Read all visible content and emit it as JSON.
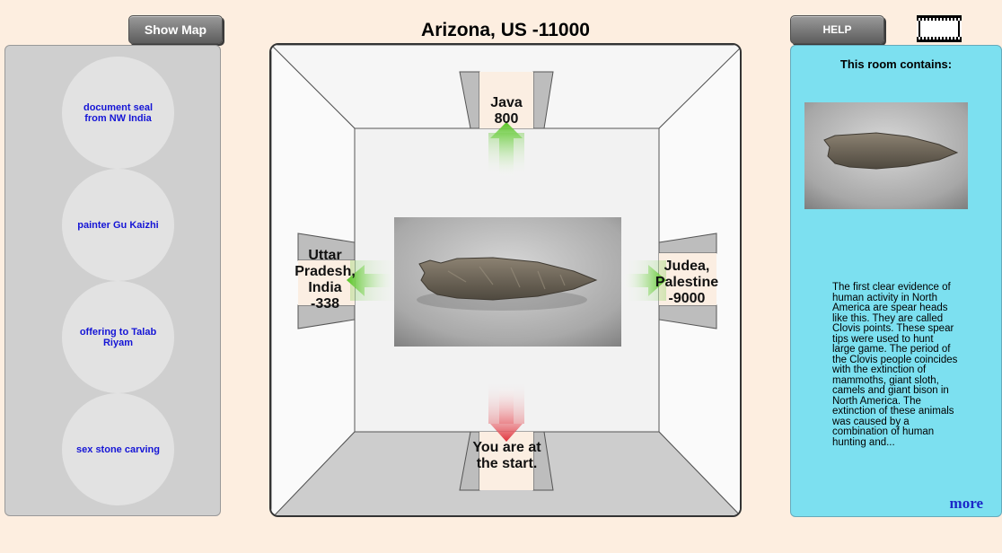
{
  "title": "Arizona, US -11000",
  "buttons": {
    "show_map": "Show Map",
    "help": "HELP"
  },
  "left_panel": {
    "items": [
      "document seal from NW India",
      "painter Gu Kaizhi",
      "offering to Talab Riyam",
      "sex stone carving"
    ]
  },
  "room": {
    "north": {
      "line1": "Java",
      "line2": "800"
    },
    "west": {
      "line1": "Uttar",
      "line2": "Pradesh,",
      "line3": "India",
      "line4": "-338"
    },
    "east": {
      "line1": "Judea,",
      "line2": "Palestine",
      "line3": "-9000"
    },
    "south": {
      "line1": "You are at",
      "line2": "the start."
    },
    "artifact_icon": "clovis-point-photo"
  },
  "right_panel": {
    "heading": "This room contains:",
    "description": "The first clear evidence of human activity in North America are spear heads like this. They are called Clovis points. These spear tips were used to hunt large game. The period of the Clovis people coincides with the extinction of mammoths, giant sloth, camels and giant bison in North America. The extinction of these animals was caused by a combination of human hunting and...",
    "more": "more"
  },
  "colors": {
    "background": "#fdeee0",
    "left_panel": "#cfcfcf",
    "right_panel": "#7ce0f0",
    "link": "#1515d6",
    "arrow_forward": "#55c421",
    "arrow_back": "#e0323b"
  }
}
